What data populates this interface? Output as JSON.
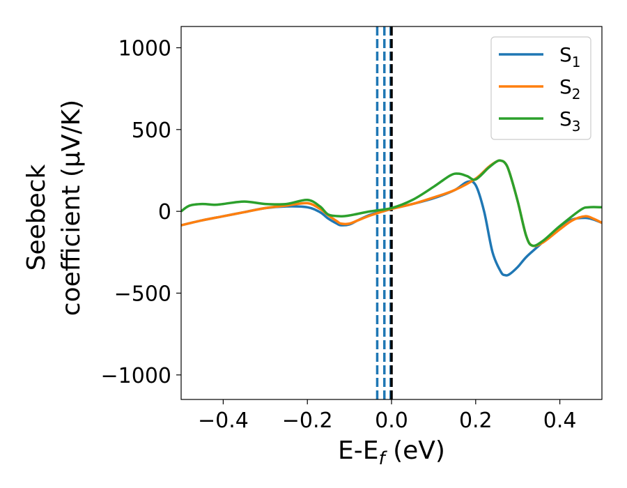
{
  "chart_data": {
    "type": "line",
    "xlabel": {
      "main": "E-E",
      "sub": "f",
      "unit": " (eV)"
    },
    "ylabel": {
      "line1": "Seebeck",
      "line2": "coefficient  (μV/K)"
    },
    "xlim": [
      -0.5,
      0.5
    ],
    "ylim": [
      -1150,
      1130
    ],
    "xticks": [
      {
        "value": -0.4,
        "label": "−0.4"
      },
      {
        "value": -0.2,
        "label": "−0.2"
      },
      {
        "value": 0.0,
        "label": "0.0"
      },
      {
        "value": 0.2,
        "label": "0.2"
      },
      {
        "value": 0.4,
        "label": "0.4"
      }
    ],
    "yticks": [
      {
        "value": 1000,
        "label": "1000"
      },
      {
        "value": 500,
        "label": "500"
      },
      {
        "value": 0,
        "label": "0"
      },
      {
        "value": -500,
        "label": "−500"
      },
      {
        "value": -1000,
        "label": "−1000"
      }
    ],
    "legend_position": "top-right",
    "vlines": [
      {
        "x": -0.034,
        "color": "#1f77b4",
        "style": "dashed"
      },
      {
        "x": -0.017,
        "color": "#1f77b4",
        "style": "dashed"
      },
      {
        "x": -0.002,
        "color": "#1f77b4",
        "style": "dashed"
      },
      {
        "x": 0.0,
        "color": "#000000",
        "style": "dashed"
      }
    ],
    "series": [
      {
        "name": "S",
        "sub": "1",
        "color": "#1f77b4",
        "x": [
          -0.5,
          -0.45,
          -0.4,
          -0.35,
          -0.3,
          -0.25,
          -0.2,
          -0.17,
          -0.15,
          -0.13,
          -0.12,
          -0.1,
          -0.08,
          -0.05,
          -0.02,
          0.0,
          0.05,
          0.1,
          0.15,
          0.18,
          0.2,
          0.22,
          0.24,
          0.26,
          0.27,
          0.28,
          0.3,
          0.32,
          0.35,
          0.38,
          0.4,
          0.43,
          0.46,
          0.48,
          0.5
        ],
        "y": [
          -85,
          -55,
          -30,
          -5,
          20,
          30,
          25,
          -5,
          -45,
          -75,
          -85,
          -80,
          -55,
          -20,
          0,
          15,
          45,
          80,
          130,
          180,
          160,
          0,
          -250,
          -370,
          -390,
          -385,
          -340,
          -280,
          -210,
          -140,
          -95,
          -50,
          -40,
          -50,
          -70
        ]
      },
      {
        "name": "S",
        "sub": "2",
        "color": "#ff7f0e",
        "x": [
          -0.5,
          -0.45,
          -0.4,
          -0.35,
          -0.3,
          -0.25,
          -0.2,
          -0.17,
          -0.15,
          -0.13,
          -0.12,
          -0.1,
          -0.08,
          -0.05,
          -0.02,
          0.0,
          0.05,
          0.1,
          0.15,
          0.2,
          0.23,
          0.25,
          0.26,
          0.27,
          0.28,
          0.3,
          0.32,
          0.335,
          0.36,
          0.4,
          0.43,
          0.46,
          0.48,
          0.5
        ],
        "y": [
          -85,
          -55,
          -30,
          -5,
          20,
          35,
          50,
          15,
          -25,
          -60,
          -75,
          -75,
          -55,
          -25,
          0,
          15,
          45,
          85,
          130,
          200,
          270,
          305,
          310,
          295,
          240,
          60,
          -150,
          -210,
          -190,
          -110,
          -55,
          -30,
          -45,
          -70
        ]
      },
      {
        "name": "S",
        "sub": "3",
        "color": "#2ca02c",
        "x": [
          -0.5,
          -0.48,
          -0.45,
          -0.42,
          -0.4,
          -0.35,
          -0.3,
          -0.25,
          -0.2,
          -0.17,
          -0.15,
          -0.12,
          -0.1,
          -0.05,
          0.0,
          0.05,
          0.1,
          0.14,
          0.16,
          0.18,
          0.2,
          0.23,
          0.25,
          0.26,
          0.27,
          0.28,
          0.3,
          0.32,
          0.335,
          0.36,
          0.4,
          0.45,
          0.47,
          0.5
        ],
        "y": [
          0,
          35,
          45,
          40,
          45,
          60,
          45,
          45,
          70,
          30,
          -20,
          -30,
          -25,
          0,
          20,
          70,
          150,
          220,
          230,
          215,
          195,
          265,
          305,
          310,
          295,
          240,
          60,
          -150,
          -210,
          -180,
          -90,
          10,
          25,
          25
        ]
      }
    ]
  }
}
